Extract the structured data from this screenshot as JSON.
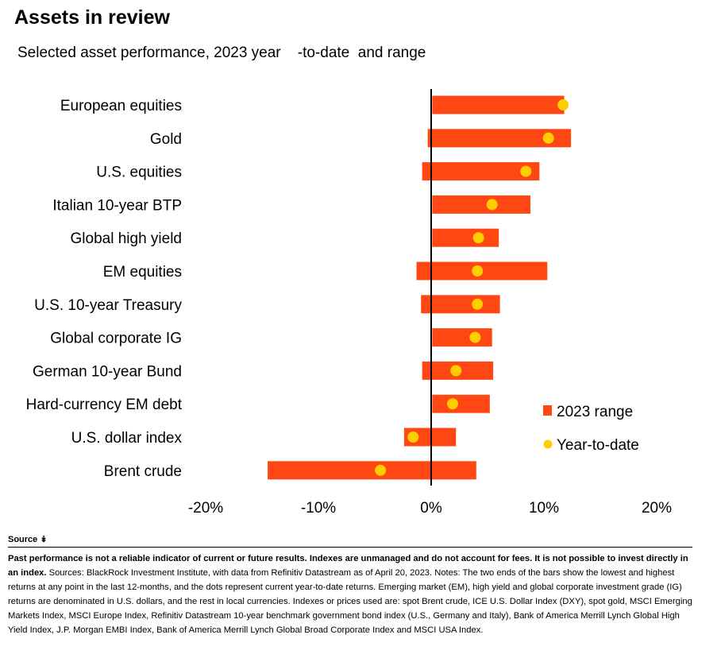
{
  "header": {
    "title": "Assets in review",
    "subtitle": "Selected asset performance, 2023 year    -to-date  and range"
  },
  "chart_data": {
    "type": "bar",
    "orientation": "horizontal",
    "title": "Assets in review",
    "subtitle": "Selected asset performance, 2023 year-to-date and range",
    "categories": [
      "European equities",
      "Gold",
      "U.S. equities",
      "Italian 10-year BTP",
      "Global high yield",
      "EM equities",
      "U.S. 10-year Treasury",
      "Global corporate IG",
      "German 10-year Bund",
      "Hard-currency EM debt",
      "U.S. dollar index",
      "Brent crude"
    ],
    "series": [
      {
        "name": "2023 range",
        "type": "range_bar",
        "low": [
          0.1,
          -0.3,
          -0.8,
          0.1,
          0.1,
          -1.3,
          -0.9,
          0.1,
          -0.8,
          0.1,
          -2.4,
          -14.5
        ],
        "high": [
          11.8,
          12.4,
          9.6,
          8.8,
          6.0,
          10.3,
          6.1,
          5.4,
          5.5,
          5.2,
          2.2,
          4.0
        ]
      },
      {
        "name": "Year-to-date",
        "type": "dot",
        "values": [
          11.7,
          10.4,
          8.4,
          5.4,
          4.2,
          4.1,
          4.1,
          3.9,
          2.2,
          1.9,
          -1.6,
          -4.5
        ]
      }
    ],
    "xlim": [
      -20,
      20
    ],
    "xticks": [
      -20,
      -10,
      0,
      10,
      20
    ],
    "xtick_labels": [
      "-20%",
      "-10%",
      "0%",
      "10%",
      "20%"
    ],
    "xlabel": "",
    "ylabel": "",
    "grid": false,
    "legend": "bottom-right",
    "colors": {
      "range": "#ff4713",
      "ytd": "#ffce00",
      "zero_line": "#000000"
    }
  },
  "source": {
    "toggle_label": "Source",
    "toggle_icon": "chevron-double-down-icon",
    "bold_text": "Past performance is not a reliable indicator of current or future results. Indexes are unmanaged and do not account for fees. It is not possible to invest directly in an index.",
    "body_text": " Sources: BlackRock Investment Institute, with data from Refinitiv Datastream as of April 20, 2023. Notes: The two ends of the bars show the lowest and highest returns at any point in the last 12-months, and the dots represent current year-to-date returns. Emerging market (EM), high yield and global corporate investment grade (IG) returns are denominated in U.S. dollars, and the rest in local currencies. Indexes or prices used are: spot Brent crude, ICE U.S. Dollar Index (DXY), spot gold, MSCI Emerging Markets Index, MSCI Europe Index, Refinitiv Datastream 10-year benchmark government bond index (U.S., Germany and Italy), Bank of America Merrill Lynch Global High Yield Index, J.P. Morgan EMBI Index, Bank of America Merrill Lynch Global Broad Corporate Index and MSCI USA Index."
  }
}
